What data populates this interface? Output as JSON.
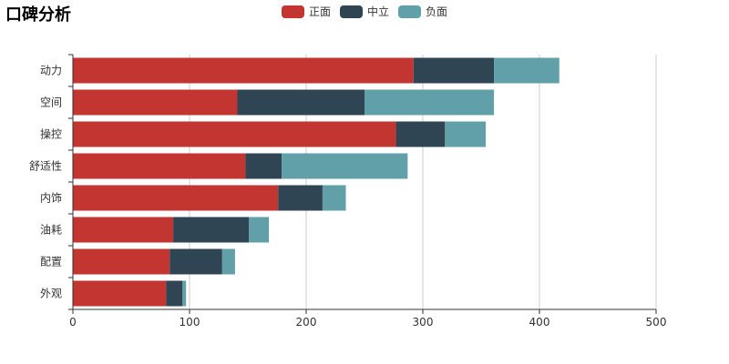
{
  "chart_data": {
    "type": "bar",
    "orientation": "horizontal",
    "stacked": true,
    "title": "口碑分析",
    "categories": [
      "动力",
      "空间",
      "操控",
      "舒适性",
      "内饰",
      "油耗",
      "配置",
      "外观"
    ],
    "series": [
      {
        "name": "正面",
        "color": "#c23531",
        "values": [
          292,
          141,
          277,
          148,
          176,
          86,
          83,
          80
        ]
      },
      {
        "name": "中立",
        "color": "#2f4554",
        "values": [
          69,
          109,
          42,
          31,
          38,
          65,
          45,
          14
        ]
      },
      {
        "name": "负面",
        "color": "#61a0a8",
        "values": [
          56,
          111,
          35,
          108,
          20,
          17,
          11,
          3
        ]
      }
    ],
    "xlim": [
      0,
      500
    ],
    "xticks": [
      0,
      100,
      200,
      300,
      400,
      500
    ],
    "xlabel": "",
    "ylabel": "",
    "grid": true,
    "legend_position": "top-center"
  }
}
